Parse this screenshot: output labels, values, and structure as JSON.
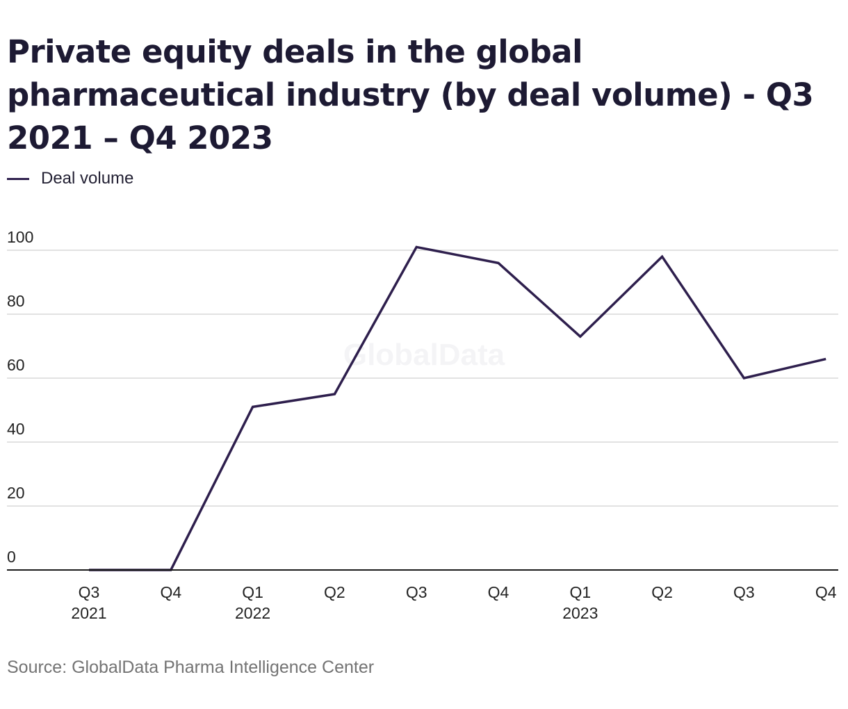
{
  "title": "Private equity deals in the global pharmaceutical industry (by deal volume) - Q3 2021 – Q4 2023",
  "source": "Source: GlobalData Pharma Intelligence Center",
  "watermark": "GlobalData",
  "colors": {
    "line": "#2e1f4d",
    "grid": "#d9d9d9",
    "axis": "#1a1a1a",
    "tick_text": "#222222",
    "watermark": "#f4f4f6"
  },
  "chart_data": {
    "type": "line",
    "title": "Private equity deals in the global pharmaceutical industry (by deal volume) - Q3 2021 – Q4 2023",
    "xlabel": "",
    "ylabel": "",
    "ylim": [
      0,
      100
    ],
    "yticks": [
      0,
      20,
      40,
      60,
      80,
      100
    ],
    "grid": true,
    "legend_position": "top-left",
    "categories": [
      [
        "Q3",
        "2021"
      ],
      [
        "Q4"
      ],
      [
        "Q1",
        "2022"
      ],
      [
        "Q2"
      ],
      [
        "Q3"
      ],
      [
        "Q4"
      ],
      [
        "Q1",
        "2023"
      ],
      [
        "Q2"
      ],
      [
        "Q3"
      ],
      [
        "Q4"
      ]
    ],
    "series": [
      {
        "name": "Deal volume",
        "color": "#2e1f4d",
        "values": [
          0,
          0,
          51,
          55,
          101,
          96,
          73,
          98,
          60,
          66
        ]
      }
    ]
  }
}
